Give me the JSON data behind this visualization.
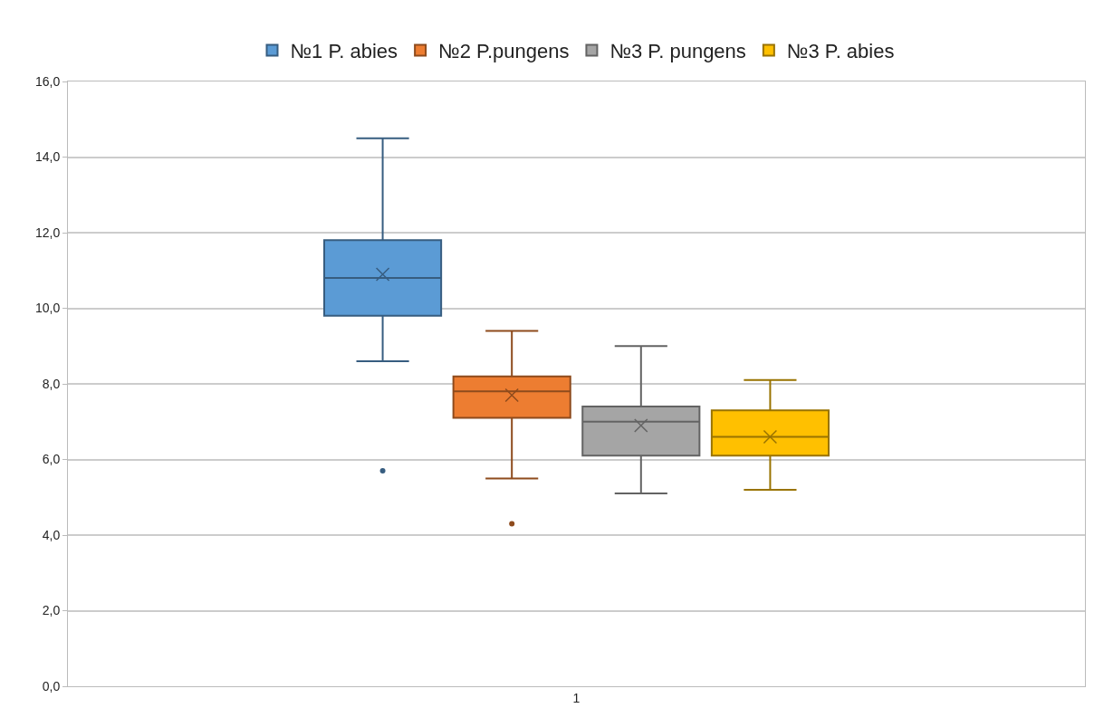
{
  "chart_data": {
    "type": "box",
    "categories": [
      "1"
    ],
    "series": [
      {
        "name": "№1 P. abies",
        "color": "#5b9bd5",
        "boxes": [
          {
            "low": 8.6,
            "q1": 9.8,
            "median": 10.8,
            "q3": 11.8,
            "high": 14.5,
            "mean": 10.9,
            "outliers": [
              5.7
            ]
          }
        ]
      },
      {
        "name": "№2 P.pungens",
        "color": "#ed7d31",
        "boxes": [
          {
            "low": 5.5,
            "q1": 7.1,
            "median": 7.8,
            "q3": 8.2,
            "high": 9.4,
            "mean": 7.7,
            "outliers": [
              4.3
            ]
          }
        ]
      },
      {
        "name": "№3 P. pungens",
        "color": "#a5a5a5",
        "boxes": [
          {
            "low": 5.1,
            "q1": 6.1,
            "median": 7.0,
            "q3": 7.4,
            "high": 9.0,
            "mean": 6.9
          }
        ]
      },
      {
        "name": "№3 P. abies",
        "color": "#ffc000",
        "boxes": [
          {
            "low": 5.2,
            "q1": 6.1,
            "median": 6.6,
            "q3": 7.3,
            "high": 8.1,
            "mean": 6.6
          }
        ]
      }
    ],
    "ylim": [
      0,
      16
    ],
    "yticks": [
      {
        "value": 0,
        "label": "0,0"
      },
      {
        "value": 2,
        "label": "2,0"
      },
      {
        "value": 4,
        "label": "4,0"
      },
      {
        "value": 6,
        "label": "6,0"
      },
      {
        "value": 8,
        "label": "8,0"
      },
      {
        "value": 10,
        "label": "10,0"
      },
      {
        "value": 12,
        "label": "12,0"
      },
      {
        "value": 14,
        "label": "14,0"
      },
      {
        "value": 16,
        "label": "16,0"
      }
    ],
    "grid": "y",
    "legend": "top"
  }
}
